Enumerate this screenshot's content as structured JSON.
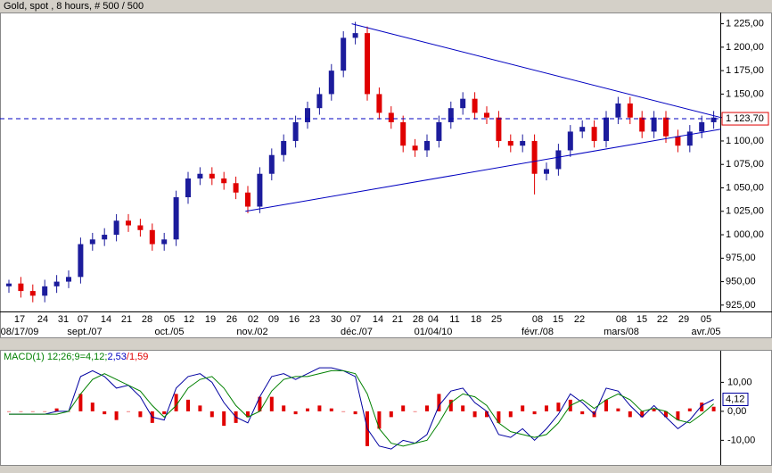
{
  "chart_data": [
    {
      "type": "candlestick",
      "title": "Gold, spot , 8 hours, # 500 / 500",
      "up_color": "#1c1c9c",
      "down_color": "#e00000",
      "open": [
        945,
        948,
        940,
        935,
        945,
        950,
        955,
        990,
        995,
        1000,
        1015,
        1010,
        1005,
        990,
        995,
        1040,
        1060,
        1065,
        1060,
        1055,
        1045,
        1030,
        1065,
        1085,
        1100,
        1120,
        1135,
        1150,
        1175,
        1210,
        1215,
        1150,
        1130,
        1120,
        1095,
        1090,
        1100,
        1120,
        1135,
        1145,
        1130,
        1125,
        1100,
        1095,
        1100,
        1065,
        1070,
        1090,
        1110,
        1115,
        1100,
        1125,
        1140,
        1125,
        1110,
        1125,
        1105,
        1095,
        1110,
        1120
      ],
      "high": [
        952,
        955,
        947,
        952,
        957,
        962,
        997,
        1002,
        1007,
        1022,
        1022,
        1017,
        1012,
        1002,
        1047,
        1067,
        1072,
        1072,
        1067,
        1062,
        1052,
        1072,
        1092,
        1107,
        1127,
        1142,
        1157,
        1182,
        1217,
        1227,
        1222,
        1157,
        1137,
        1127,
        1102,
        1107,
        1127,
        1142,
        1152,
        1152,
        1137,
        1132,
        1107,
        1107,
        1107,
        1077,
        1097,
        1117,
        1122,
        1122,
        1132,
        1147,
        1147,
        1132,
        1132,
        1132,
        1112,
        1117,
        1127,
        1132
      ],
      "low": [
        938,
        933,
        928,
        928,
        938,
        943,
        948,
        983,
        988,
        993,
        1003,
        998,
        983,
        983,
        988,
        1033,
        1053,
        1053,
        1048,
        1038,
        1023,
        1023,
        1058,
        1078,
        1093,
        1113,
        1128,
        1143,
        1168,
        1203,
        1143,
        1123,
        1113,
        1088,
        1083,
        1083,
        1093,
        1113,
        1128,
        1123,
        1118,
        1093,
        1088,
        1088,
        1043,
        1058,
        1063,
        1083,
        1103,
        1093,
        1093,
        1118,
        1118,
        1103,
        1103,
        1098,
        1088,
        1088,
        1103,
        1113
      ],
      "close": [
        948,
        940,
        935,
        945,
        950,
        955,
        990,
        995,
        1000,
        1015,
        1010,
        1005,
        990,
        995,
        1040,
        1060,
        1065,
        1060,
        1055,
        1045,
        1030,
        1065,
        1085,
        1100,
        1120,
        1135,
        1150,
        1175,
        1210,
        1215,
        1150,
        1130,
        1120,
        1095,
        1090,
        1100,
        1120,
        1135,
        1145,
        1130,
        1125,
        1100,
        1095,
        1100,
        1065,
        1070,
        1090,
        1110,
        1115,
        1100,
        1125,
        1140,
        1125,
        1110,
        1125,
        1105,
        1095,
        1110,
        1120,
        1125
      ],
      "ylim": [
        922,
        1237
      ],
      "yticks": [
        {
          "value": 925,
          "label": "925,00"
        },
        {
          "value": 950,
          "label": "950,00"
        },
        {
          "value": 975,
          "label": "975,00"
        },
        {
          "value": 1000,
          "label": "1 000,00"
        },
        {
          "value": 1025,
          "label": "1 025,00"
        },
        {
          "value": 1050,
          "label": "1 050,00"
        },
        {
          "value": 1075,
          "label": "1 075,00"
        },
        {
          "value": 1100,
          "label": "1 100,00"
        },
        {
          "value": 1125,
          "label": "1 125,00"
        },
        {
          "value": 1150,
          "label": "1 150,00"
        },
        {
          "value": 1175,
          "label": "1 175,00"
        },
        {
          "value": 1200,
          "label": "1 200,00"
        },
        {
          "value": 1225,
          "label": "1 225,00"
        }
      ],
      "last_price": {
        "value": 1123.7,
        "label": "1 123,70"
      },
      "trendlines": [
        {
          "start": [
            28.7,
            1225
          ],
          "end": [
            59.6,
            1125
          ]
        },
        {
          "start": [
            19.8,
            1025
          ],
          "end": [
            59.6,
            1112.6
          ]
        }
      ],
      "line_color": "#0000c0",
      "x_day_labels": [
        "17",
        "24",
        "31",
        "07",
        "14",
        "21",
        "28",
        "05",
        "12",
        "19",
        "26",
        "02",
        "09",
        "16",
        "23",
        "30",
        "07",
        "14",
        "21",
        "28",
        "04",
        "11",
        "18",
        "25",
        "08",
        "15",
        "22",
        "08",
        "15",
        "22",
        "29",
        "05"
      ],
      "x_month_labels": [
        "08/17/09",
        "sept./07",
        "oct./05",
        "nov./02",
        "déc./07",
        "01/04/10",
        "févr./08",
        "mars/08",
        "avr./05"
      ]
    },
    {
      "type": "macd",
      "title_parts": [
        "MACD(1) 12;26;9=4,12;",
        "2,53",
        "/1,59"
      ],
      "title_colors": [
        "#008000",
        "#0000c0",
        "#e00000"
      ],
      "series": [
        {
          "name": "MACD",
          "color": "#0000a0",
          "values": [
            -1,
            -1,
            -1,
            -1,
            0,
            0,
            12,
            14,
            12,
            8,
            9,
            5,
            -2,
            -3,
            8,
            12,
            13,
            10,
            3,
            -2,
            -4,
            5,
            12,
            13,
            11,
            13,
            15,
            15,
            14,
            12,
            -6,
            -12,
            -13,
            -10,
            -11,
            -8,
            2,
            7,
            8,
            3,
            0,
            -8,
            -9,
            -6,
            -10,
            -6,
            -1,
            6,
            3,
            -1,
            8,
            7,
            2,
            -2,
            2,
            -2,
            -6,
            -3,
            2,
            4.12
          ]
        },
        {
          "name": "Signal",
          "color": "#008000",
          "values": [
            -1,
            -1,
            -1,
            -1,
            -1,
            0,
            6,
            11,
            13,
            11,
            9,
            7,
            2,
            -2,
            2,
            8,
            11,
            12,
            8,
            2,
            -2,
            0,
            7,
            11,
            12,
            12,
            13,
            14,
            14,
            13,
            6,
            -6,
            -11,
            -12,
            -11,
            -10,
            -4,
            3,
            6,
            5,
            2,
            -4,
            -7,
            -8,
            -9,
            -8,
            -4,
            2,
            4,
            1,
            4,
            6,
            4,
            0,
            1,
            0,
            -3,
            -4,
            -1,
            2.53
          ]
        }
      ],
      "histogram": {
        "color": "#e00000",
        "values": [
          0,
          0,
          0,
          0,
          1,
          0,
          6,
          3,
          -1,
          -3,
          0,
          -2,
          -4,
          -1,
          6,
          4,
          2,
          -2,
          -5,
          -4,
          -2,
          5,
          5,
          2,
          -1,
          1,
          2,
          1,
          0,
          -1,
          -12,
          -6,
          -2,
          2,
          0,
          2,
          6,
          4,
          2,
          -2,
          -2,
          -4,
          -2,
          2,
          -1,
          2,
          3,
          4,
          -1,
          -2,
          4,
          1,
          -2,
          -2,
          1,
          -2,
          -3,
          1,
          3,
          1.59
        ]
      },
      "ylim": [
        -18.2,
        20.9
      ],
      "yticks": [
        {
          "value": 10,
          "label": "10,00"
        },
        {
          "value": 0,
          "label": "0,00"
        },
        {
          "value": -10,
          "label": "-10,00"
        }
      ],
      "last_value": {
        "value": 4.12,
        "label": "4,12"
      }
    }
  ]
}
